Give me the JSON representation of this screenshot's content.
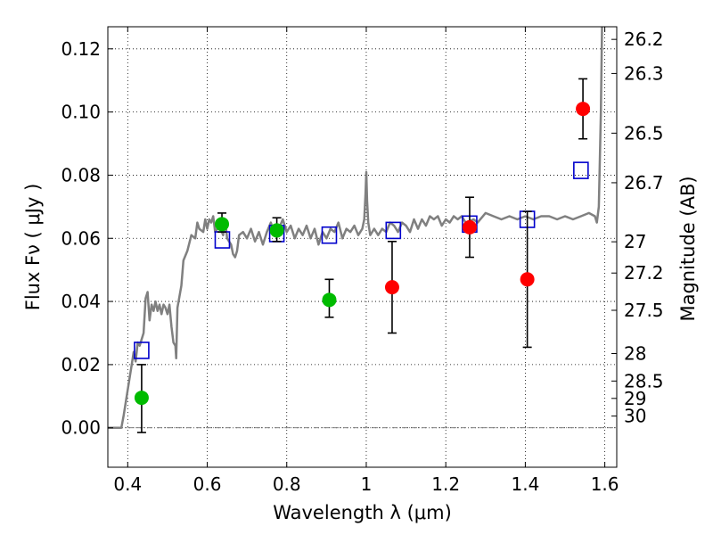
{
  "chart_data": {
    "type": "scatter",
    "title": "",
    "xlabel": "Wavelength  λ (μm)",
    "ylabel": "Flux  Fν  ( μJy )",
    "ylabel_right": "Magnitude (AB)",
    "xlim": [
      0.35,
      1.63
    ],
    "ylim": [
      -0.0125,
      0.127
    ],
    "grid": true,
    "legend": "none",
    "x_ticks": [
      {
        "value": 0.4,
        "label": "0.4"
      },
      {
        "value": 0.6,
        "label": "0.6"
      },
      {
        "value": 0.8,
        "label": "0.8"
      },
      {
        "value": 1.0,
        "label": "1"
      },
      {
        "value": 1.2,
        "label": "1.2"
      },
      {
        "value": 1.4,
        "label": "1.4"
      },
      {
        "value": 1.6,
        "label": "1.6"
      }
    ],
    "y_ticks": [
      {
        "value": 0.0,
        "label": "0.00"
      },
      {
        "value": 0.02,
        "label": "0.02"
      },
      {
        "value": 0.04,
        "label": "0.04"
      },
      {
        "value": 0.06,
        "label": "0.06"
      },
      {
        "value": 0.08,
        "label": "0.08"
      },
      {
        "value": 0.1,
        "label": "0.10"
      },
      {
        "value": 0.12,
        "label": "0.12"
      }
    ],
    "y_right_ticks": [
      {
        "label": "26.2",
        "flux": 0.123
      },
      {
        "label": "26.3",
        "flux": 0.1122
      },
      {
        "label": "26.5",
        "flux": 0.0933
      },
      {
        "label": "26.7",
        "flux": 0.0776
      },
      {
        "label": "27",
        "flux": 0.0589
      },
      {
        "label": "27.2",
        "flux": 0.049
      },
      {
        "label": "27.5",
        "flux": 0.0372
      },
      {
        "label": "28",
        "flux": 0.0235
      },
      {
        "label": "28.5",
        "flux": 0.0148
      },
      {
        "label": "29",
        "flux": 0.0093
      },
      {
        "label": "30",
        "flux": 0.0037
      }
    ],
    "series": [
      {
        "kind": "model_spectrum",
        "color": "#808080",
        "points": [
          [
            0.35,
            0.0
          ],
          [
            0.384,
            0.0
          ],
          [
            0.39,
            0.004
          ],
          [
            0.4,
            0.012
          ],
          [
            0.41,
            0.02
          ],
          [
            0.415,
            0.024
          ],
          [
            0.42,
            0.021
          ],
          [
            0.425,
            0.027
          ],
          [
            0.43,
            0.026
          ],
          [
            0.44,
            0.03
          ],
          [
            0.445,
            0.041
          ],
          [
            0.45,
            0.043
          ],
          [
            0.455,
            0.034
          ],
          [
            0.46,
            0.039
          ],
          [
            0.465,
            0.037
          ],
          [
            0.47,
            0.04
          ],
          [
            0.475,
            0.037
          ],
          [
            0.48,
            0.039
          ],
          [
            0.485,
            0.036
          ],
          [
            0.49,
            0.039
          ],
          [
            0.495,
            0.038
          ],
          [
            0.5,
            0.036
          ],
          [
            0.505,
            0.039
          ],
          [
            0.51,
            0.032
          ],
          [
            0.515,
            0.027
          ],
          [
            0.52,
            0.026
          ],
          [
            0.522,
            0.022
          ],
          [
            0.525,
            0.038
          ],
          [
            0.535,
            0.045
          ],
          [
            0.54,
            0.053
          ],
          [
            0.55,
            0.056
          ],
          [
            0.56,
            0.061
          ],
          [
            0.57,
            0.06
          ],
          [
            0.575,
            0.065
          ],
          [
            0.58,
            0.063
          ],
          [
            0.59,
            0.062
          ],
          [
            0.595,
            0.066
          ],
          [
            0.6,
            0.063
          ],
          [
            0.605,
            0.066
          ],
          [
            0.61,
            0.065
          ],
          [
            0.615,
            0.067
          ],
          [
            0.62,
            0.062
          ],
          [
            0.63,
            0.064
          ],
          [
            0.64,
            0.061
          ],
          [
            0.645,
            0.066
          ],
          [
            0.65,
            0.06
          ],
          [
            0.66,
            0.058
          ],
          [
            0.665,
            0.055
          ],
          [
            0.67,
            0.054
          ],
          [
            0.675,
            0.056
          ],
          [
            0.68,
            0.061
          ],
          [
            0.69,
            0.062
          ],
          [
            0.7,
            0.06
          ],
          [
            0.71,
            0.063
          ],
          [
            0.72,
            0.059
          ],
          [
            0.73,
            0.062
          ],
          [
            0.74,
            0.058
          ],
          [
            0.75,
            0.062
          ],
          [
            0.76,
            0.065
          ],
          [
            0.77,
            0.061
          ],
          [
            0.78,
            0.063
          ],
          [
            0.79,
            0.066
          ],
          [
            0.8,
            0.062
          ],
          [
            0.81,
            0.064
          ],
          [
            0.82,
            0.06
          ],
          [
            0.83,
            0.063
          ],
          [
            0.84,
            0.061
          ],
          [
            0.85,
            0.064
          ],
          [
            0.86,
            0.06
          ],
          [
            0.87,
            0.063
          ],
          [
            0.88,
            0.058
          ],
          [
            0.89,
            0.062
          ],
          [
            0.9,
            0.06
          ],
          [
            0.91,
            0.063
          ],
          [
            0.92,
            0.062
          ],
          [
            0.93,
            0.065
          ],
          [
            0.94,
            0.06
          ],
          [
            0.95,
            0.063
          ],
          [
            0.96,
            0.062
          ],
          [
            0.97,
            0.064
          ],
          [
            0.98,
            0.061
          ],
          [
            0.99,
            0.063
          ],
          [
            0.995,
            0.066
          ],
          [
            0.998,
            0.074
          ],
          [
            1.0,
            0.081
          ],
          [
            1.002,
            0.072
          ],
          [
            1.005,
            0.065
          ],
          [
            1.01,
            0.061
          ],
          [
            1.02,
            0.063
          ],
          [
            1.03,
            0.061
          ],
          [
            1.04,
            0.063
          ],
          [
            1.05,
            0.062
          ],
          [
            1.06,
            0.065
          ],
          [
            1.07,
            0.064
          ],
          [
            1.08,
            0.062
          ],
          [
            1.09,
            0.065
          ],
          [
            1.1,
            0.064
          ],
          [
            1.11,
            0.062
          ],
          [
            1.12,
            0.066
          ],
          [
            1.13,
            0.063
          ],
          [
            1.14,
            0.066
          ],
          [
            1.15,
            0.064
          ],
          [
            1.16,
            0.067
          ],
          [
            1.17,
            0.066
          ],
          [
            1.18,
            0.067
          ],
          [
            1.19,
            0.064
          ],
          [
            1.2,
            0.066
          ],
          [
            1.21,
            0.065
          ],
          [
            1.22,
            0.067
          ],
          [
            1.23,
            0.066
          ],
          [
            1.24,
            0.067
          ],
          [
            1.25,
            0.065
          ],
          [
            1.27,
            0.066
          ],
          [
            1.28,
            0.065
          ],
          [
            1.3,
            0.068
          ],
          [
            1.32,
            0.067
          ],
          [
            1.34,
            0.066
          ],
          [
            1.36,
            0.067
          ],
          [
            1.38,
            0.066
          ],
          [
            1.4,
            0.067
          ],
          [
            1.42,
            0.066
          ],
          [
            1.44,
            0.067
          ],
          [
            1.46,
            0.067
          ],
          [
            1.48,
            0.066
          ],
          [
            1.5,
            0.067
          ],
          [
            1.52,
            0.066
          ],
          [
            1.54,
            0.067
          ],
          [
            1.56,
            0.068
          ],
          [
            1.575,
            0.067
          ],
          [
            1.58,
            0.065
          ],
          [
            1.585,
            0.07
          ],
          [
            1.59,
            0.1
          ],
          [
            1.593,
            0.127
          ]
        ]
      },
      {
        "kind": "model_photometry",
        "marker": "open-square",
        "color": "#0000cc",
        "points": [
          [
            0.435,
            0.0245
          ],
          [
            0.638,
            0.0595
          ],
          [
            0.775,
            0.0615
          ],
          [
            0.907,
            0.061
          ],
          [
            1.068,
            0.0625
          ],
          [
            1.26,
            0.0645
          ],
          [
            1.405,
            0.066
          ],
          [
            1.54,
            0.0815
          ]
        ]
      },
      {
        "kind": "observed_optical",
        "marker": "filled-circle",
        "color": "#00bb00",
        "points": [
          {
            "x": 0.435,
            "y": 0.0095,
            "err_lo": 0.011,
            "err_hi": 0.0105
          },
          {
            "x": 0.637,
            "y": 0.0645,
            "err_lo": 0.0025,
            "err_hi": 0.0035
          },
          {
            "x": 0.775,
            "y": 0.0625,
            "err_lo": 0.0035,
            "err_hi": 0.004
          },
          {
            "x": 0.907,
            "y": 0.0405,
            "err_lo": 0.0055,
            "err_hi": 0.0065
          }
        ]
      },
      {
        "kind": "observed_ir",
        "marker": "filled-circle",
        "color": "#ff0000",
        "points": [
          {
            "x": 1.065,
            "y": 0.0445,
            "err_lo": 0.0145,
            "err_hi": 0.0145
          },
          {
            "x": 1.26,
            "y": 0.0635,
            "err_lo": 0.0095,
            "err_hi": 0.0095
          },
          {
            "x": 1.405,
            "y": 0.047,
            "err_lo": 0.0215,
            "err_hi": 0.0215
          },
          {
            "x": 1.545,
            "y": 0.101,
            "err_lo": 0.0095,
            "err_hi": 0.0095
          }
        ]
      }
    ]
  }
}
